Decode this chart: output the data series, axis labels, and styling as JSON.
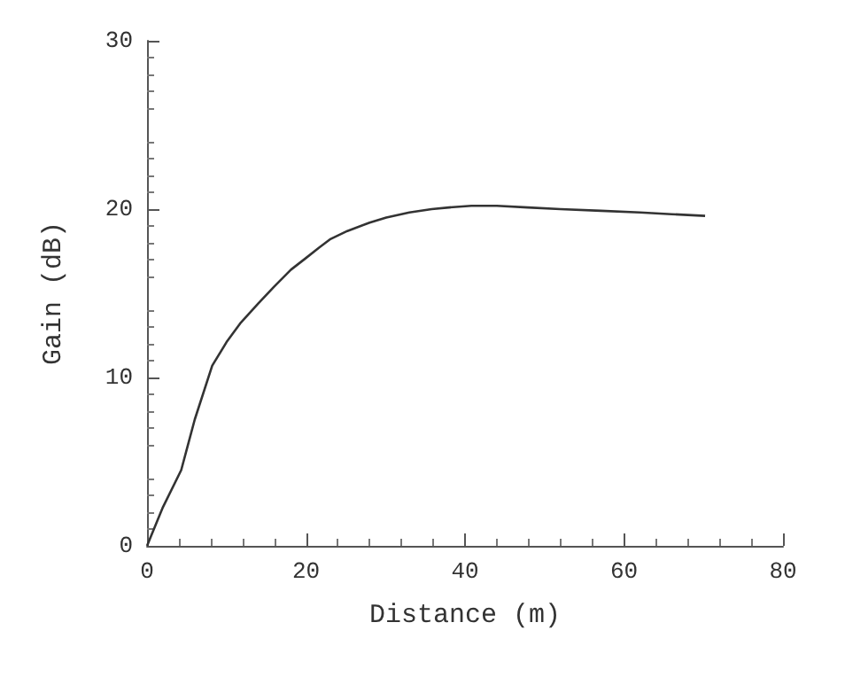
{
  "chart_data": {
    "type": "line",
    "xlabel": "Distance (m)",
    "ylabel": "Gain (dB)",
    "series": [
      {
        "color": "#333333",
        "x": [
          0,
          2,
          4.3,
          6,
          8.2,
          10,
          11.7,
          14,
          16,
          18.1,
          20,
          21.6,
          23,
          25.2,
          28,
          30.1,
          33,
          35.8,
          38,
          40.8,
          44,
          47.9,
          52,
          57.1,
          62,
          66,
          70.2
        ],
        "values": [
          0,
          2.3,
          4.5,
          7.5,
          10.7,
          12.1,
          13.2,
          14.4,
          15.4,
          16.4,
          17.1,
          17.7,
          18.2,
          18.7,
          19.2,
          19.5,
          19.8,
          20.0,
          20.1,
          20.2,
          20.2,
          20.1,
          20.0,
          19.9,
          19.8,
          19.7,
          19.6
        ]
      }
    ],
    "xlim": [
      0,
      80
    ],
    "xticks": [
      0,
      20,
      40,
      60,
      80
    ],
    "ylim": [
      0,
      30
    ],
    "yticks": [
      0,
      10,
      20,
      30
    ],
    "grid": false,
    "marker": "none",
    "line_style": "solid"
  }
}
